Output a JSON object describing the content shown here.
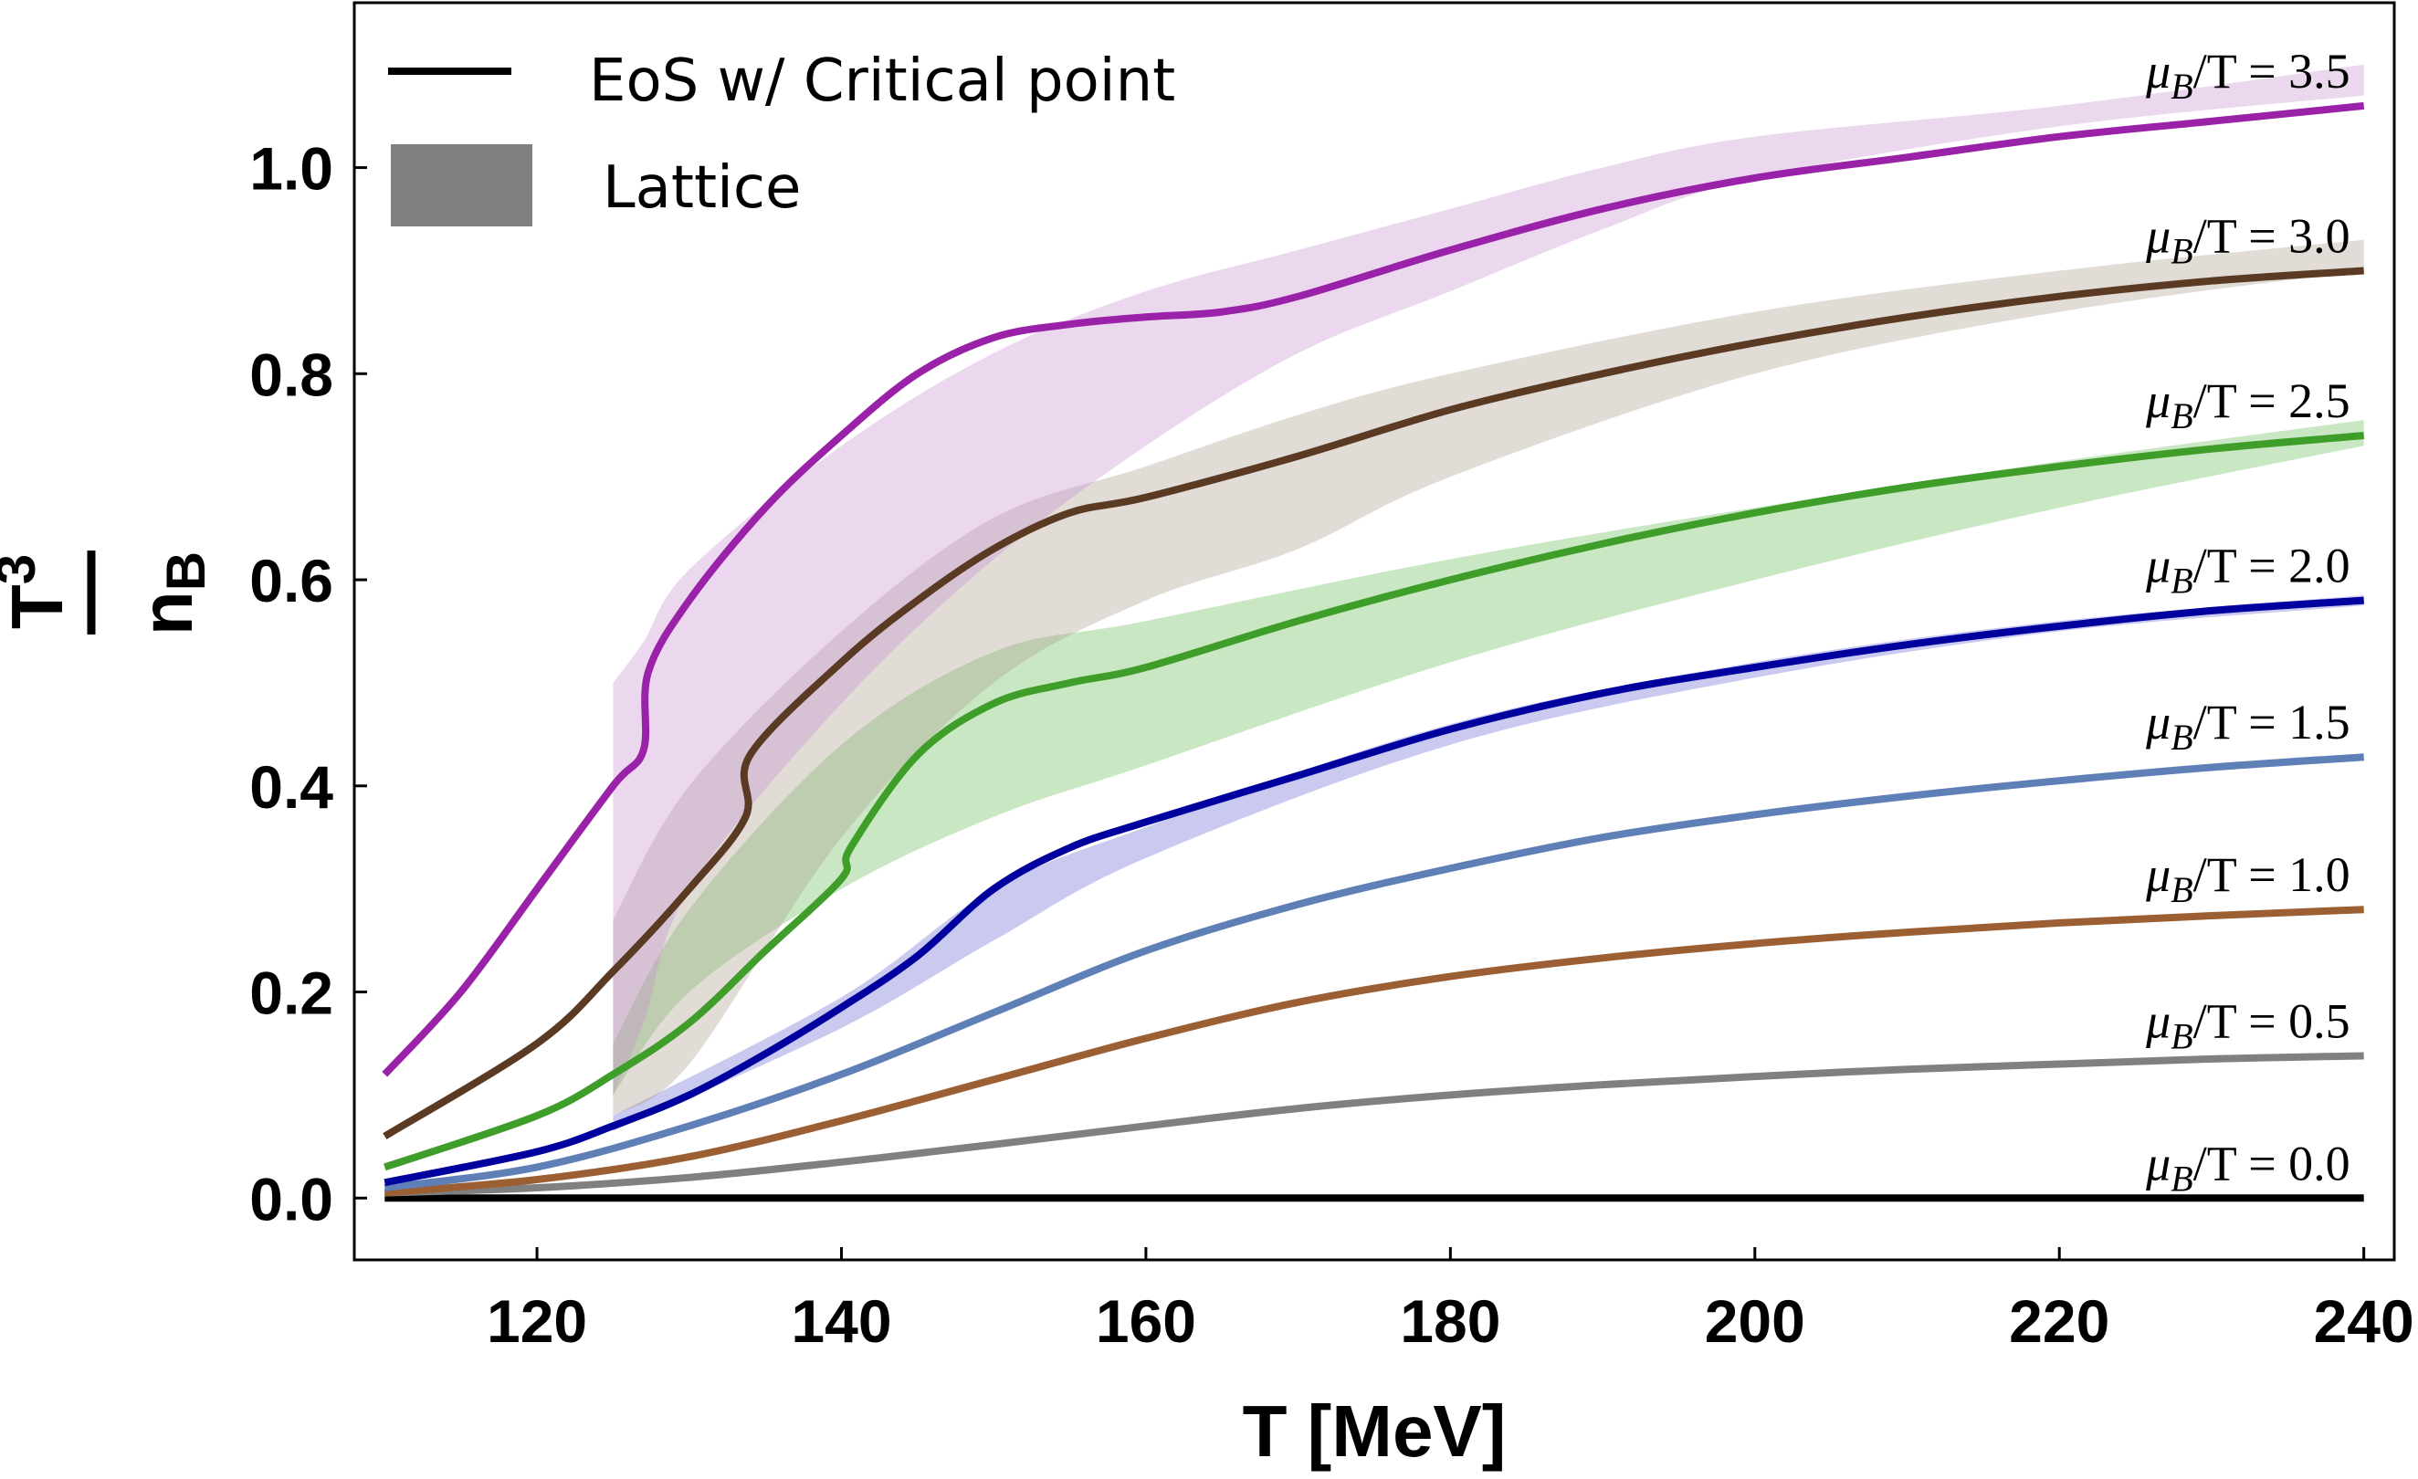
{
  "chart_data": {
    "type": "line",
    "xlabel": "T [MeV]",
    "ylabel_num": "n",
    "ylabel_num_sub": "B",
    "ylabel_den": "T",
    "ylabel_den_sup": "3",
    "xlim": [
      108,
      242
    ],
    "ylim": [
      -0.06,
      1.16
    ],
    "x_ticks": [
      120,
      140,
      160,
      180,
      200,
      220,
      240
    ],
    "y_ticks": [
      0.0,
      0.2,
      0.4,
      0.6,
      0.8,
      1.0
    ],
    "x_tick_labels": [
      "120",
      "140",
      "160",
      "180",
      "200",
      "220",
      "240"
    ],
    "y_tick_labels": [
      "0.0",
      "0.2",
      "0.4",
      "0.6",
      "0.8",
      "1.0"
    ],
    "legend": {
      "position": "top-left",
      "line_label": "EoS w/ Critical point",
      "band_label": "Lattice",
      "line_color": "#000000",
      "band_color": "#808080"
    },
    "series": [
      {
        "label": "μ_B/T = 0.0",
        "label_mu": "μ",
        "label_sub": "B",
        "label_rest": "/T = 0.0",
        "color": "#000000",
        "band_color": "#000000",
        "x": [
          110,
          240
        ],
        "y": [
          0.0,
          0.0
        ],
        "band": null
      },
      {
        "label": "μ_B/T = 0.5",
        "label_mu": "μ",
        "label_sub": "B",
        "label_rest": "/T = 0.5",
        "color": "#808080",
        "band_color": "#808080",
        "x": [
          110,
          120,
          130,
          140,
          150,
          160,
          170,
          180,
          190,
          200,
          210,
          220,
          230,
          240
        ],
        "y": [
          0.005,
          0.01,
          0.02,
          0.035,
          0.052,
          0.07,
          0.087,
          0.1,
          0.11,
          0.118,
          0.125,
          0.13,
          0.135,
          0.138
        ],
        "band": null
      },
      {
        "label": "μ_B/T = 1.0",
        "label_mu": "μ",
        "label_sub": "B",
        "label_rest": "/T = 1.0",
        "color": "#9b5f33",
        "band_color": "#9b5f33",
        "x": [
          110,
          120,
          130,
          140,
          150,
          160,
          170,
          180,
          190,
          200,
          210,
          220,
          230,
          240
        ],
        "y": [
          0.005,
          0.018,
          0.04,
          0.075,
          0.115,
          0.155,
          0.19,
          0.215,
          0.233,
          0.247,
          0.258,
          0.267,
          0.274,
          0.28
        ],
        "band": null
      },
      {
        "label": "μ_B/T = 1.5",
        "label_mu": "μ",
        "label_sub": "B",
        "label_rest": "/T = 1.5",
        "color": "#5f7fb7",
        "band_color": "#5f7fb7",
        "x": [
          110,
          120,
          130,
          140,
          150,
          160,
          170,
          180,
          190,
          200,
          210,
          220,
          230,
          240
        ],
        "y": [
          0.01,
          0.03,
          0.07,
          0.12,
          0.18,
          0.24,
          0.285,
          0.32,
          0.35,
          0.372,
          0.39,
          0.405,
          0.418,
          0.428
        ],
        "band": null
      },
      {
        "label": "μ_B/T = 2.0",
        "label_mu": "μ",
        "label_sub": "B",
        "label_rest": "/T = 2.0",
        "color": "#00009e",
        "band_color": "#6868d8",
        "x": [
          110,
          120,
          125,
          130,
          135,
          140,
          145,
          150,
          155,
          160,
          170,
          180,
          190,
          200,
          210,
          220,
          230,
          240
        ],
        "y": [
          0.015,
          0.045,
          0.07,
          0.1,
          0.14,
          0.185,
          0.235,
          0.3,
          0.34,
          0.365,
          0.41,
          0.455,
          0.49,
          0.515,
          0.537,
          0.555,
          0.57,
          0.58
        ],
        "band": {
          "x": [
            125,
            140,
            150,
            160,
            180,
            200,
            220,
            240
          ],
          "lo": [
            0.065,
            0.165,
            0.25,
            0.33,
            0.44,
            0.505,
            0.55,
            0.575
          ],
          "hi": [
            0.08,
            0.195,
            0.3,
            0.36,
            0.46,
            0.52,
            0.56,
            0.585
          ]
        }
      },
      {
        "label": "μ_B/T = 2.5",
        "label_mu": "μ",
        "label_sub": "B",
        "label_rest": "/T = 2.5",
        "color": "#3f9e2a",
        "band_color": "#66bb55",
        "x": [
          110,
          120,
          125,
          130,
          135,
          140,
          140.6,
          145,
          150,
          155,
          160,
          170,
          180,
          190,
          200,
          210,
          220,
          230,
          240
        ],
        "y": [
          0.03,
          0.08,
          0.12,
          0.17,
          0.24,
          0.31,
          0.34,
          0.43,
          0.48,
          0.5,
          0.515,
          0.56,
          0.6,
          0.635,
          0.665,
          0.69,
          0.71,
          0.727,
          0.74
        ],
        "band": {
          "x": [
            125,
            130,
            140,
            150,
            160,
            180,
            200,
            220,
            240
          ],
          "lo": [
            0.1,
            0.2,
            0.3,
            0.37,
            0.42,
            0.52,
            0.6,
            0.67,
            0.73
          ],
          "hi": [
            0.15,
            0.28,
            0.44,
            0.53,
            0.56,
            0.62,
            0.67,
            0.715,
            0.755
          ]
        }
      },
      {
        "label": "μ_B/T = 3.0",
        "label_mu": "μ",
        "label_sub": "B",
        "label_rest": "/T = 3.0",
        "color": "#5b3a24",
        "band_color": "#a89a8a",
        "x": [
          110,
          120,
          125,
          130,
          133.7,
          134,
          140,
          145,
          150,
          155,
          160,
          170,
          180,
          190,
          200,
          210,
          220,
          230,
          240
        ],
        "y": [
          0.06,
          0.15,
          0.22,
          0.3,
          0.37,
          0.43,
          0.52,
          0.58,
          0.63,
          0.665,
          0.68,
          0.72,
          0.765,
          0.8,
          0.83,
          0.855,
          0.875,
          0.89,
          0.9
        ],
        "band": {
          "x": [
            125,
            130,
            140,
            150,
            160,
            170,
            180,
            200,
            220,
            240
          ],
          "lo": [
            0.08,
            0.13,
            0.35,
            0.5,
            0.58,
            0.63,
            0.7,
            0.8,
            0.86,
            0.9
          ],
          "hi": [
            0.27,
            0.4,
            0.55,
            0.66,
            0.71,
            0.76,
            0.8,
            0.86,
            0.9,
            0.93
          ]
        }
      },
      {
        "label": "μ_B/T = 3.5",
        "label_mu": "μ",
        "label_sub": "B",
        "label_rest": "/T = 3.5",
        "color": "#9a22a8",
        "band_color": "#c58fd2",
        "x": [
          110,
          115,
          120,
          125,
          127,
          127.3,
          130,
          135,
          140,
          145,
          150,
          155,
          160,
          165,
          170,
          180,
          190,
          200,
          210,
          220,
          230,
          240
        ],
        "y": [
          0.12,
          0.2,
          0.3,
          0.4,
          0.435,
          0.51,
          0.58,
          0.67,
          0.74,
          0.8,
          0.835,
          0.848,
          0.855,
          0.86,
          0.875,
          0.92,
          0.96,
          0.99,
          1.01,
          1.03,
          1.045,
          1.06
        ],
        "band": {
          "x": [
            125,
            127,
            130,
            140,
            150,
            160,
            170,
            180,
            190,
            200,
            220,
            240
          ],
          "lo": [
            0.1,
            0.17,
            0.3,
            0.48,
            0.62,
            0.73,
            0.82,
            0.88,
            0.94,
            0.99,
            1.04,
            1.07
          ],
          "hi": [
            0.5,
            0.54,
            0.61,
            0.73,
            0.82,
            0.88,
            0.92,
            0.96,
            1.0,
            1.03,
            1.06,
            1.1
          ]
        }
      }
    ]
  }
}
